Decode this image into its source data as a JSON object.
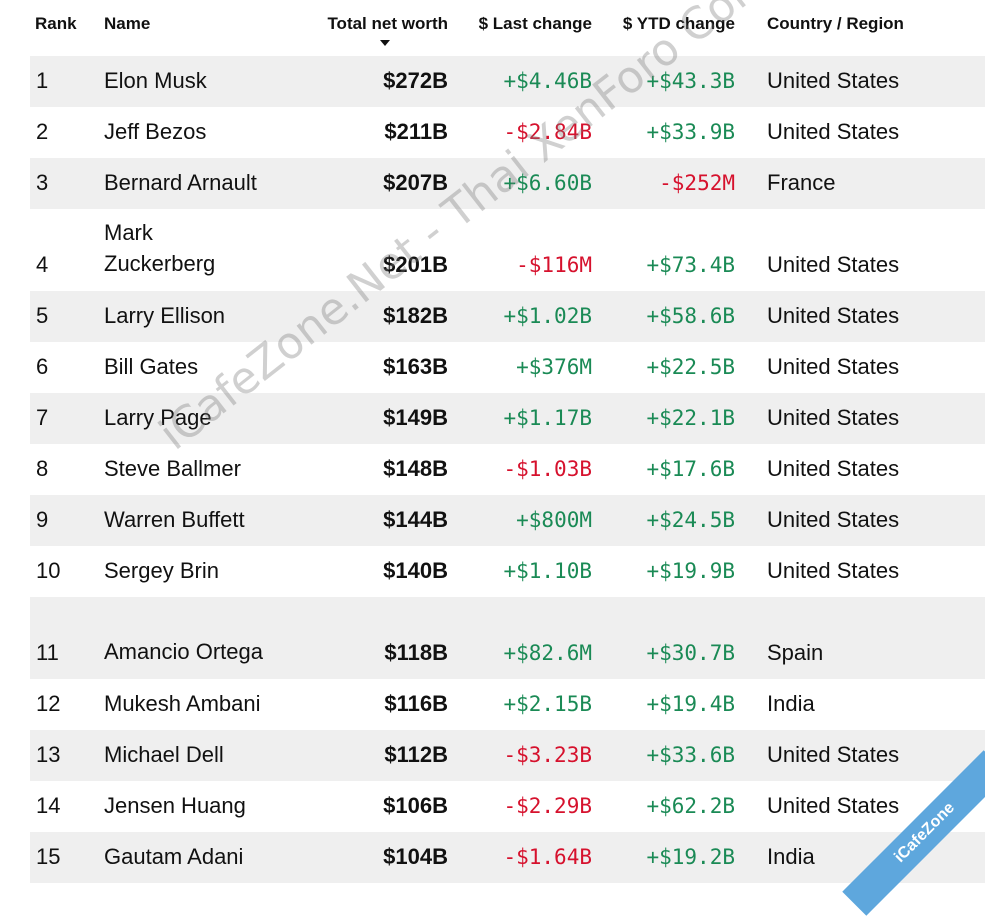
{
  "columns": {
    "rank": "Rank",
    "name": "Name",
    "net_worth": "Total net worth",
    "last_change": "$ Last change",
    "ytd_change": "$ YTD change",
    "country": "Country / Region"
  },
  "rows": [
    {
      "rank": "1",
      "name": "Elon Musk",
      "net": "$272B",
      "last": "+$4.46B",
      "ytd": "+$43.3B",
      "country": "United States"
    },
    {
      "rank": "2",
      "name": "Jeff Bezos",
      "net": "$211B",
      "last": "-$2.84B",
      "ytd": "+$33.9B",
      "country": "United States"
    },
    {
      "rank": "3",
      "name": "Bernard Arnault",
      "net": "$207B",
      "last": "+$6.60B",
      "ytd": "-$252M",
      "country": "France"
    },
    {
      "rank": "4",
      "name": "Mark Zuckerberg",
      "net": "$201B",
      "last": "-$116M",
      "ytd": "+$73.4B",
      "country": "United States"
    },
    {
      "rank": "5",
      "name": "Larry Ellison",
      "net": "$182B",
      "last": "+$1.02B",
      "ytd": "+$58.6B",
      "country": "United States"
    },
    {
      "rank": "6",
      "name": "Bill Gates",
      "net": "$163B",
      "last": "+$376M",
      "ytd": "+$22.5B",
      "country": "United States"
    },
    {
      "rank": "7",
      "name": "Larry Page",
      "net": "$149B",
      "last": "+$1.17B",
      "ytd": "+$22.1B",
      "country": "United States"
    },
    {
      "rank": "8",
      "name": "Steve Ballmer",
      "net": "$148B",
      "last": "-$1.03B",
      "ytd": "+$17.6B",
      "country": "United States"
    },
    {
      "rank": "9",
      "name": "Warren Buffett",
      "net": "$144B",
      "last": "+$800M",
      "ytd": "+$24.5B",
      "country": "United States"
    },
    {
      "rank": "10",
      "name": "Sergey Brin",
      "net": "$140B",
      "last": "+$1.10B",
      "ytd": "+$19.9B",
      "country": "United States"
    },
    {
      "rank": "11",
      "name": "Amancio Ortega",
      "net": "$118B",
      "last": "+$82.6M",
      "ytd": "+$30.7B",
      "country": "Spain"
    },
    {
      "rank": "12",
      "name": "Mukesh Ambani",
      "net": "$116B",
      "last": "+$2.15B",
      "ytd": "+$19.4B",
      "country": "India"
    },
    {
      "rank": "13",
      "name": "Michael Dell",
      "net": "$112B",
      "last": "-$3.23B",
      "ytd": "+$33.6B",
      "country": "United States"
    },
    {
      "rank": "14",
      "name": "Jensen Huang",
      "net": "$106B",
      "last": "-$2.29B",
      "ytd": "+$62.2B",
      "country": "United States"
    },
    {
      "rank": "15",
      "name": "Gautam Adani",
      "net": "$104B",
      "last": "-$1.64B",
      "ytd": "+$19.2B",
      "country": "India"
    }
  ],
  "watermark": "iCafeZone.Net - Thai XenForo Community",
  "ribbon": "iCafeZone",
  "colors": {
    "positive": "#1a8a55",
    "negative": "#d6112d",
    "row_alt": "#efefef"
  },
  "sort": {
    "icon": "sort-descending-icon"
  }
}
